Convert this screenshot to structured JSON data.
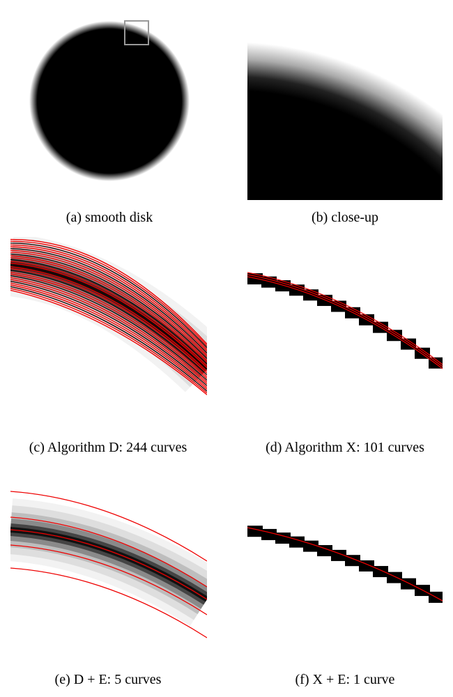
{
  "figure": {
    "panels": [
      {
        "caption": "(a) smooth disk"
      },
      {
        "caption": "(b) close-up"
      },
      {
        "caption": "(c) Algorithm D: 244 curves"
      },
      {
        "caption": "(d) Algorithm X: 101 curves"
      },
      {
        "caption": "(e) D + E: 5 curves"
      },
      {
        "caption": "(f) X + E: 1 curve"
      }
    ]
  }
}
